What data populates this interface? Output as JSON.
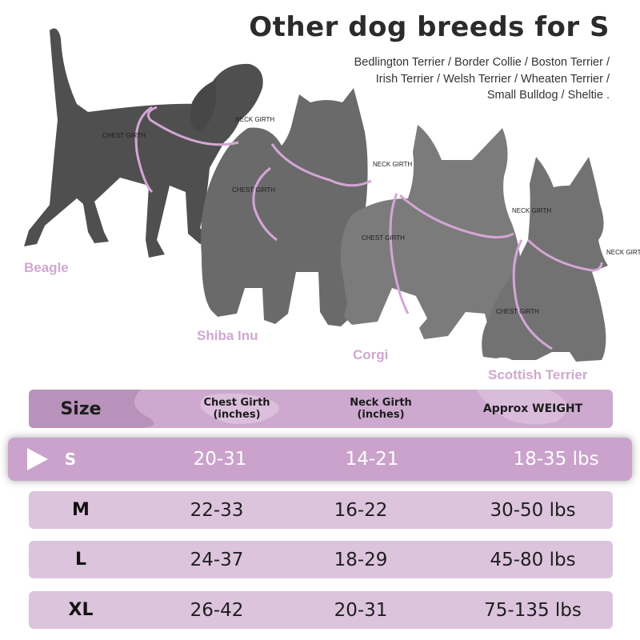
{
  "header": {
    "title": "Other dog breeds for S",
    "description_lines": [
      "Bedlington Terrier / Border Collie / Boston Terrier /",
      "Irish Terrier / Welsh Terrier / Wheaten Terrier /",
      "Small Bulldog / Sheltie ."
    ]
  },
  "dogs": [
    {
      "name": "Beagle",
      "chest_label": "CHEST GIRTH",
      "neck_label": "NECK GIRTH"
    },
    {
      "name": "Shiba Inu",
      "chest_label": "CHEST GIRTH",
      "neck_label": "NECK GIRTH"
    },
    {
      "name": "Corgi",
      "chest_label": "CHEST GIRTH",
      "neck_label": "NECK GIRTH"
    },
    {
      "name": "Scottish Terrier",
      "chest_label": "CHEST GIRTH",
      "neck_label": "NECK GIRTH"
    }
  ],
  "table": {
    "headers": {
      "size": "Size",
      "chest": [
        "Chest Girth",
        "(inches)"
      ],
      "neck": [
        "Neck Girth",
        "(inches)"
      ],
      "weight": "Approx WEIGHT"
    },
    "rows": [
      {
        "size": "S",
        "chest": "20-31",
        "neck": "14-21",
        "weight": "18-35 lbs",
        "selected": true
      },
      {
        "size": "M",
        "chest": "22-33",
        "neck": "16-22",
        "weight": "30-50 lbs",
        "selected": false
      },
      {
        "size": "L",
        "chest": "24-37",
        "neck": "18-29",
        "weight": "45-80 lbs",
        "selected": false
      },
      {
        "size": "XL",
        "chest": "26-42",
        "neck": "20-31",
        "weight": "75-135 lbs",
        "selected": false
      }
    ]
  },
  "colors": {
    "silhouette": "#4f4f4f",
    "silhouette_mid": "#6a6a6a",
    "silhouette_light": "#7e7e7e",
    "girth_line": "#d4a6d6",
    "header_bg": "#cda9cf",
    "selected_bg": "#caa2cc",
    "row_bg": "#dcc4dd",
    "label_pink": "#cfa8cf"
  }
}
